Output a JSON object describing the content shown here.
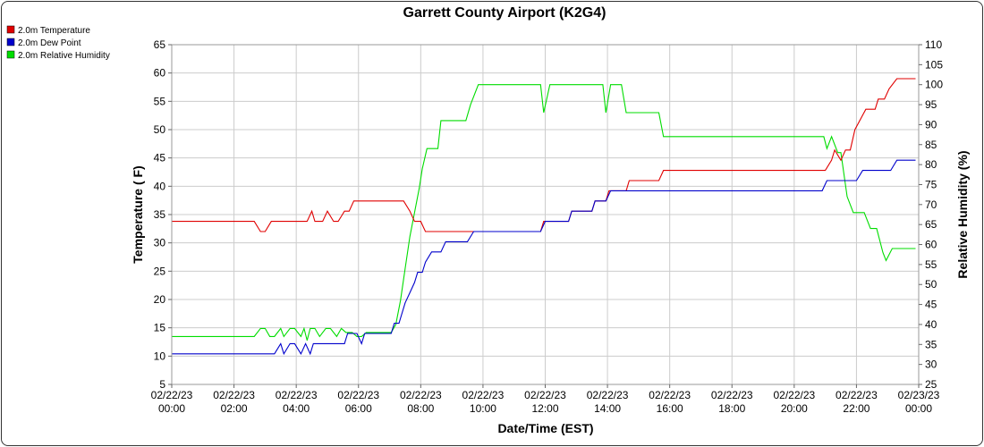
{
  "chart_data": {
    "type": "line",
    "title": "Garrett County Airport (K2G4)",
    "xlabel": "Date/Time (EST)",
    "ylabel": "Temperature ( F)",
    "y2label": "Relative Humidity (%)",
    "x_ticks": [
      {
        "date": "02/22/23",
        "time": "00:00",
        "h": 0
      },
      {
        "date": "02/22/23",
        "time": "02:00",
        "h": 2
      },
      {
        "date": "02/22/23",
        "time": "04:00",
        "h": 4
      },
      {
        "date": "02/22/23",
        "time": "06:00",
        "h": 6
      },
      {
        "date": "02/22/23",
        "time": "08:00",
        "h": 8
      },
      {
        "date": "02/22/23",
        "time": "10:00",
        "h": 10
      },
      {
        "date": "02/22/23",
        "time": "12:00",
        "h": 12
      },
      {
        "date": "02/22/23",
        "time": "14:00",
        "h": 14
      },
      {
        "date": "02/22/23",
        "time": "16:00",
        "h": 16
      },
      {
        "date": "02/22/23",
        "time": "18:00",
        "h": 18
      },
      {
        "date": "02/22/23",
        "time": "20:00",
        "h": 20
      },
      {
        "date": "02/22/23",
        "time": "22:00",
        "h": 22
      },
      {
        "date": "02/23/23",
        "time": "00:00",
        "h": 24
      }
    ],
    "xlim": [
      0,
      24
    ],
    "ylim": [
      5,
      65
    ],
    "y_ticks": [
      5,
      10,
      15,
      20,
      25,
      30,
      35,
      40,
      45,
      50,
      55,
      60,
      65
    ],
    "y2lim": [
      25,
      110
    ],
    "y2_ticks": [
      25,
      30,
      35,
      40,
      45,
      50,
      55,
      60,
      65,
      70,
      75,
      80,
      85,
      90,
      95,
      100,
      105,
      110
    ],
    "grid": true,
    "legend_position": "top-left",
    "series": [
      {
        "name": "2.0m Temperature",
        "color": "#e00000",
        "axis": "left",
        "points": [
          [
            0,
            33.8
          ],
          [
            2.65,
            33.8
          ],
          [
            2.85,
            32.0
          ],
          [
            3.0,
            32.0
          ],
          [
            3.2,
            33.8
          ],
          [
            4.35,
            33.8
          ],
          [
            4.5,
            35.6
          ],
          [
            4.6,
            33.8
          ],
          [
            4.85,
            33.8
          ],
          [
            5.0,
            35.6
          ],
          [
            5.2,
            33.8
          ],
          [
            5.35,
            33.8
          ],
          [
            5.55,
            35.6
          ],
          [
            5.7,
            35.6
          ],
          [
            5.85,
            37.4
          ],
          [
            7.45,
            37.4
          ],
          [
            7.65,
            35.6
          ],
          [
            7.8,
            33.8
          ],
          [
            8.0,
            33.8
          ],
          [
            8.15,
            32.0
          ],
          [
            11.85,
            32.0
          ],
          [
            11.95,
            33.8
          ],
          [
            12.75,
            33.8
          ],
          [
            12.85,
            35.6
          ],
          [
            13.5,
            35.6
          ],
          [
            13.6,
            37.4
          ],
          [
            13.95,
            37.4
          ],
          [
            14.05,
            39.2
          ],
          [
            14.6,
            39.2
          ],
          [
            14.7,
            41.0
          ],
          [
            15.65,
            41.0
          ],
          [
            15.8,
            42.8
          ],
          [
            21.0,
            42.8
          ],
          [
            21.2,
            44.6
          ],
          [
            21.3,
            46.4
          ],
          [
            21.5,
            44.6
          ],
          [
            21.65,
            46.4
          ],
          [
            21.8,
            46.4
          ],
          [
            21.95,
            50.0
          ],
          [
            22.3,
            53.6
          ],
          [
            22.6,
            53.6
          ],
          [
            22.7,
            55.4
          ],
          [
            22.9,
            55.4
          ],
          [
            23.05,
            57.2
          ],
          [
            23.3,
            59.0
          ],
          [
            23.9,
            59.0
          ]
        ]
      },
      {
        "name": "2.0m Dew Point",
        "color": "#0000cc",
        "axis": "left",
        "points": [
          [
            0,
            10.4
          ],
          [
            3.3,
            10.4
          ],
          [
            3.5,
            12.2
          ],
          [
            3.6,
            10.4
          ],
          [
            3.8,
            12.2
          ],
          [
            3.95,
            12.2
          ],
          [
            4.15,
            10.4
          ],
          [
            4.3,
            12.2
          ],
          [
            4.45,
            10.4
          ],
          [
            4.55,
            12.2
          ],
          [
            5.55,
            12.2
          ],
          [
            5.65,
            14.0
          ],
          [
            5.95,
            14.0
          ],
          [
            6.1,
            12.2
          ],
          [
            6.2,
            14.0
          ],
          [
            7.05,
            14.0
          ],
          [
            7.15,
            15.8
          ],
          [
            7.3,
            15.8
          ],
          [
            7.5,
            19.4
          ],
          [
            7.65,
            21.2
          ],
          [
            7.8,
            23.0
          ],
          [
            7.9,
            24.8
          ],
          [
            8.05,
            24.8
          ],
          [
            8.15,
            26.6
          ],
          [
            8.35,
            28.4
          ],
          [
            8.65,
            28.4
          ],
          [
            8.8,
            30.2
          ],
          [
            9.5,
            30.2
          ],
          [
            9.7,
            32.0
          ],
          [
            11.85,
            32.0
          ],
          [
            12.0,
            33.8
          ],
          [
            12.75,
            33.8
          ],
          [
            12.85,
            35.6
          ],
          [
            13.5,
            35.6
          ],
          [
            13.6,
            37.4
          ],
          [
            13.95,
            37.4
          ],
          [
            14.1,
            39.2
          ],
          [
            20.9,
            39.2
          ],
          [
            21.05,
            41.0
          ],
          [
            22.0,
            41.0
          ],
          [
            22.2,
            42.8
          ],
          [
            23.1,
            42.8
          ],
          [
            23.3,
            44.6
          ],
          [
            23.9,
            44.6
          ]
        ]
      },
      {
        "name": "2.0m Relative Humidity",
        "color": "#00dd00",
        "axis": "right",
        "points": [
          [
            0,
            37
          ],
          [
            2.65,
            37
          ],
          [
            2.85,
            39
          ],
          [
            3.0,
            39
          ],
          [
            3.15,
            37
          ],
          [
            3.3,
            37
          ],
          [
            3.5,
            39
          ],
          [
            3.6,
            37
          ],
          [
            3.8,
            39
          ],
          [
            3.95,
            39
          ],
          [
            4.15,
            37
          ],
          [
            4.25,
            39
          ],
          [
            4.35,
            36
          ],
          [
            4.45,
            39
          ],
          [
            4.6,
            39
          ],
          [
            4.75,
            37
          ],
          [
            4.95,
            39
          ],
          [
            5.1,
            39
          ],
          [
            5.3,
            37
          ],
          [
            5.45,
            39
          ],
          [
            5.6,
            38
          ],
          [
            5.8,
            38
          ],
          [
            5.95,
            37
          ],
          [
            6.1,
            37
          ],
          [
            6.25,
            38
          ],
          [
            7.05,
            38
          ],
          [
            7.2,
            40
          ],
          [
            7.35,
            46
          ],
          [
            7.5,
            54
          ],
          [
            7.65,
            62
          ],
          [
            7.8,
            68
          ],
          [
            7.95,
            74
          ],
          [
            8.05,
            79
          ],
          [
            8.2,
            84
          ],
          [
            8.55,
            84
          ],
          [
            8.65,
            91
          ],
          [
            9.45,
            91
          ],
          [
            9.6,
            95
          ],
          [
            9.85,
            100
          ],
          [
            11.85,
            100
          ],
          [
            11.95,
            93
          ],
          [
            12.15,
            100
          ],
          [
            13.85,
            100
          ],
          [
            13.95,
            93
          ],
          [
            14.1,
            100
          ],
          [
            14.45,
            100
          ],
          [
            14.6,
            93
          ],
          [
            15.65,
            93
          ],
          [
            15.8,
            87
          ],
          [
            20.95,
            87
          ],
          [
            21.05,
            84
          ],
          [
            21.2,
            87
          ],
          [
            21.4,
            83
          ],
          [
            21.5,
            83
          ],
          [
            21.7,
            72
          ],
          [
            21.9,
            68
          ],
          [
            22.25,
            68
          ],
          [
            22.45,
            64
          ],
          [
            22.65,
            64
          ],
          [
            22.85,
            58
          ],
          [
            22.95,
            56
          ],
          [
            23.15,
            59
          ],
          [
            23.9,
            59
          ]
        ]
      }
    ]
  }
}
